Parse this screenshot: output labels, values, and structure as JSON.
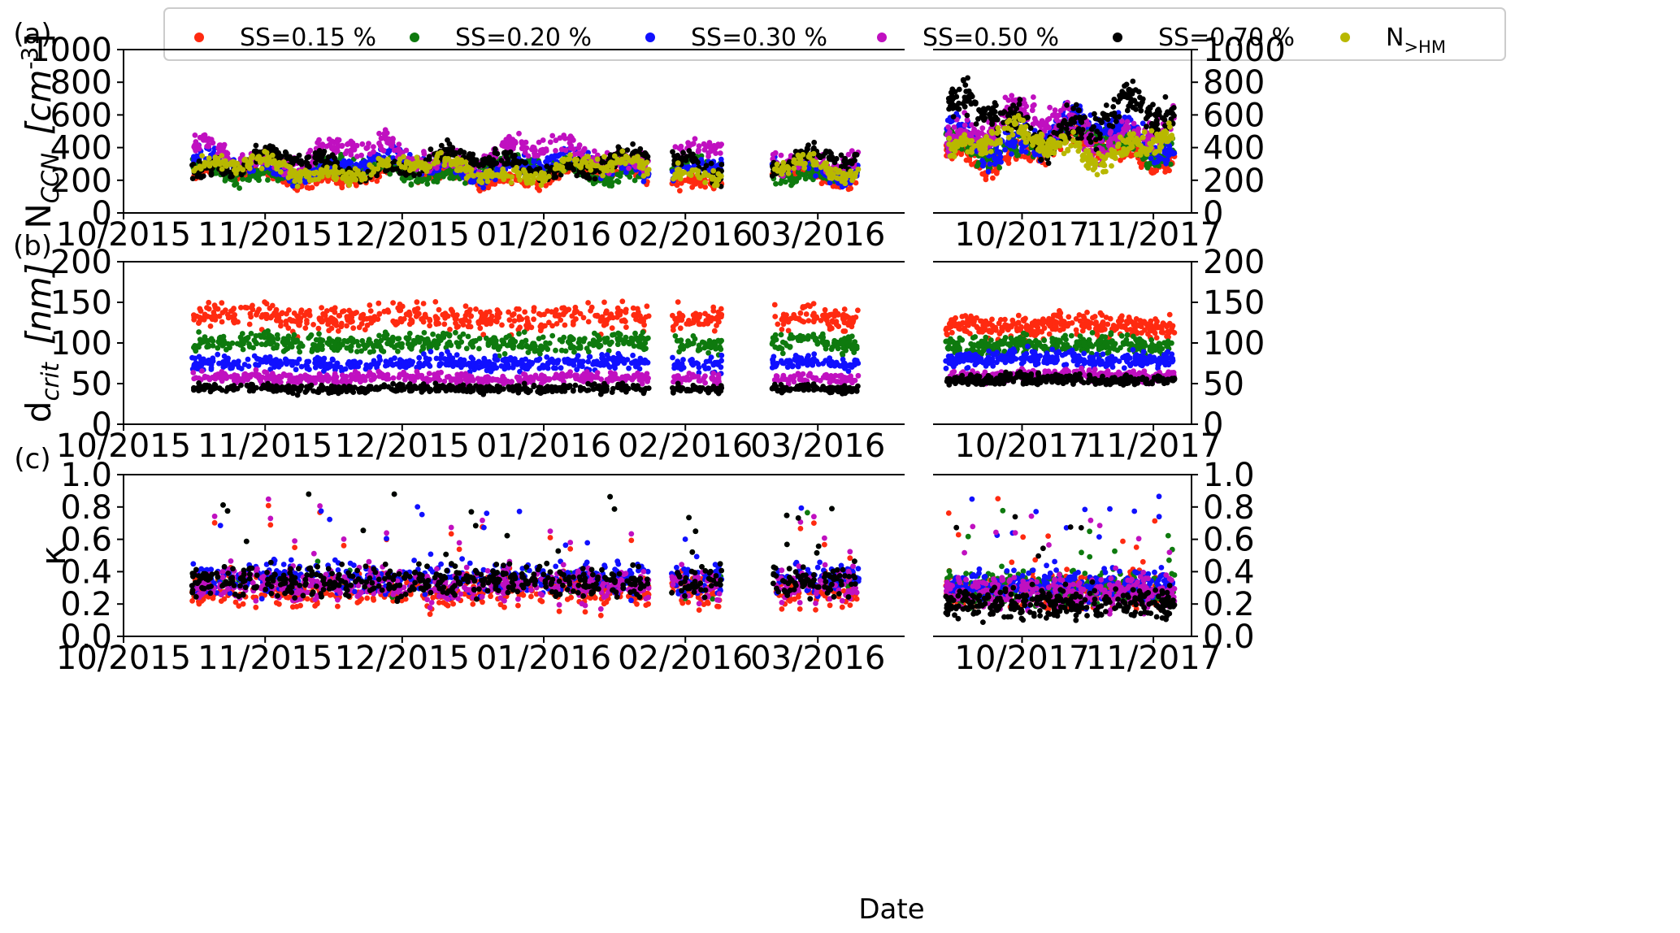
{
  "chart_data": {
    "type": "scatter",
    "xlabel": "Date",
    "legend": {
      "placement": "top",
      "entries": [
        "SS=0.15 %",
        "SS=0.20 %",
        "SS=0.30 %",
        "SS=0.50 %",
        "SS=0.70 %",
        "N_{>HM}"
      ]
    },
    "series_colors": {
      "SS=0.15 %": "#ff2a10",
      "SS=0.20 %": "#0e7a0e",
      "SS=0.30 %": "#1010ff",
      "SS=0.50 %": "#c010c0",
      "SS=0.70 %": "#000000",
      "N_{>HM}": "#b8b800"
    },
    "segments": [
      {
        "period": "2015-2016",
        "xlim": [
          "2015-10-01",
          "2016-03-20"
        ],
        "xticks": [
          "10/2015",
          "11/2015",
          "12/2015",
          "01/2016",
          "02/2016",
          "03/2016"
        ],
        "gaps": [
          [
            "2016-01-24",
            "2016-01-29"
          ],
          [
            "2016-02-09",
            "2016-02-20"
          ]
        ]
      },
      {
        "period": "2017",
        "xlim": [
          "2017-09-10",
          "2017-11-10"
        ],
        "xticks": [
          "10/2017",
          "11/2017"
        ],
        "gaps": []
      }
    ],
    "panels": [
      {
        "panel_label": "(a)",
        "ylabel": "N",
        "ylabel_sub": "CCN",
        "yunit": "[cm",
        "yunit_sup": "-3",
        "yunit_tail": "]",
        "ylim": [
          0,
          1000
        ],
        "yticks": [
          "0",
          "200",
          "400",
          "600",
          "800",
          "1000"
        ],
        "typical_values": {
          "2015-2016": {
            "SS=0.15 %": 220,
            "SS=0.20 %": 260,
            "SS=0.30 %": 290,
            "SS=0.50 %": 360,
            "SS=0.70 %": 300,
            "N_{>HM}": 270
          },
          "2017": {
            "SS=0.15 %": 380,
            "SS=0.20 %": 430,
            "SS=0.30 %": 480,
            "SS=0.50 %": 520,
            "SS=0.70 %": 560,
            "N_{>HM}": 420
          }
        }
      },
      {
        "panel_label": "(b)",
        "ylabel": "d",
        "ylabel_sub": "crit",
        "yunit": "[nm]",
        "ylim": [
          0,
          200
        ],
        "yticks": [
          "0",
          "50",
          "100",
          "150",
          "200"
        ],
        "typical_values": {
          "2015-2016": {
            "SS=0.15 %": 132,
            "SS=0.20 %": 100,
            "SS=0.30 %": 75,
            "SS=0.50 %": 57,
            "SS=0.70 %": 44
          },
          "2017": {
            "SS=0.15 %": 122,
            "SS=0.20 %": 98,
            "SS=0.30 %": 80,
            "SS=0.50 %": 60,
            "SS=0.70 %": 55
          }
        }
      },
      {
        "panel_label": "(c)",
        "ylabel": "κ",
        "ylim": [
          0,
          1.0
        ],
        "yticks": [
          "0.0",
          "0.2",
          "0.4",
          "0.6",
          "0.8",
          "1.0"
        ],
        "typical_values": {
          "2015-2016": {
            "SS=0.15 %": 0.28,
            "SS=0.20 %": 0.34,
            "SS=0.30 %": 0.36,
            "SS=0.50 %": 0.32,
            "SS=0.70 %": 0.34
          },
          "2017": {
            "SS=0.15 %": 0.28,
            "SS=0.20 %": 0.3,
            "SS=0.30 %": 0.32,
            "SS=0.50 %": 0.27,
            "SS=0.70 %": 0.2
          }
        }
      }
    ]
  }
}
